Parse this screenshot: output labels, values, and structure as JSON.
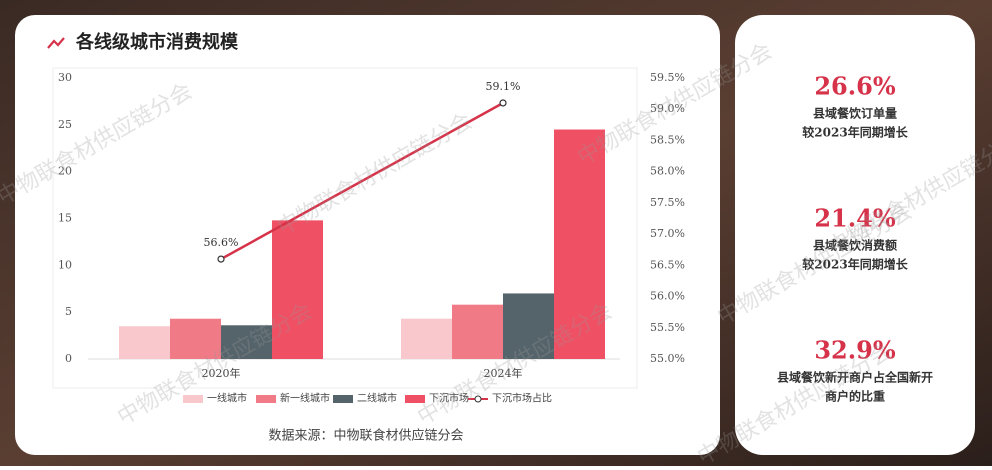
{
  "chart_data": {
    "type": "bar",
    "title": "各线级城市消费规模",
    "categories": [
      "2020年",
      "2024年"
    ],
    "series": [
      {
        "name": "一线城市",
        "color": "#f8c8cd",
        "values": [
          3.5,
          4.3
        ]
      },
      {
        "name": "新一线城市",
        "color": "#f07a86",
        "values": [
          4.3,
          5.8
        ]
      },
      {
        "name": "二线城市",
        "color": "#55646a",
        "values": [
          3.6,
          7.0
        ]
      },
      {
        "name": "下沉市场",
        "color": "#ef5063",
        "values": [
          14.8,
          24.5
        ]
      },
      {
        "name": "下沉市场占比",
        "type": "line",
        "axis": "y2",
        "color": "#d6334a",
        "values": [
          56.6,
          59.1
        ],
        "value_labels": [
          "56.6%",
          "59.1%"
        ]
      }
    ],
    "ylim": [
      0,
      30
    ],
    "yticks": [
      0,
      5,
      10,
      15,
      20,
      25,
      30
    ],
    "y2lim": [
      55,
      59.5
    ],
    "y2ticks": [
      {
        "value": 55,
        "label": "55.0%"
      },
      {
        "value": 55.5,
        "label": "55.5%"
      },
      {
        "value": 56,
        "label": "56.0%"
      },
      {
        "value": 56.5,
        "label": "56.5%"
      },
      {
        "value": 57,
        "label": "57.0%"
      },
      {
        "value": 57.5,
        "label": "57.5%"
      },
      {
        "value": 58,
        "label": "58.0%"
      },
      {
        "value": 58.5,
        "label": "58.5%"
      },
      {
        "value": 59,
        "label": "59.0%"
      },
      {
        "value": 59.5,
        "label": "59.5%"
      }
    ],
    "source": "数据来源：中物联食材供应链分会"
  },
  "stats": [
    {
      "value": "26.6%",
      "lines": [
        "县域餐饮订单量",
        "较2023年同期增长"
      ]
    },
    {
      "value": "21.4%",
      "lines": [
        "县域餐饮消费额",
        "较2023年同期增长"
      ]
    },
    {
      "value": "32.9%",
      "lines": [
        "县域餐饮新开商户占全国新开",
        "商户的比重"
      ]
    }
  ],
  "watermark": "中物联食材供应链分会"
}
